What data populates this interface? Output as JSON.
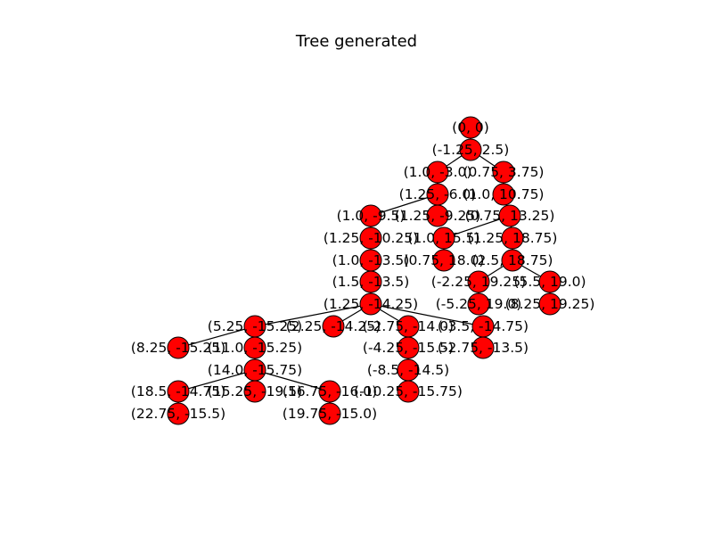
{
  "figure": {
    "title": "Tree generated",
    "node_color": "#ff0000",
    "edge_color": "#000000"
  },
  "nodes": [
    {
      "id": "n0",
      "label": "(0, 0)"
    },
    {
      "id": "n1",
      "label": "(-1.25, 2.5)"
    },
    {
      "id": "n2",
      "label": "(1.0, -3.0)"
    },
    {
      "id": "n3",
      "label": "(0.75, 3.75)"
    },
    {
      "id": "n4",
      "label": "(1.25, -6.0)"
    },
    {
      "id": "n5",
      "label": "(1.0, 10.75)"
    },
    {
      "id": "n6",
      "label": "(1.0, -9.5)"
    },
    {
      "id": "n7",
      "label": "(1.25, -9.25)"
    },
    {
      "id": "n8",
      "label": "(0.75, 13.25)"
    },
    {
      "id": "n9",
      "label": "(1.25, -10.25)"
    },
    {
      "id": "n10",
      "label": "(1.0, 15.5)"
    },
    {
      "id": "n11",
      "label": "(1.25, 18.75)"
    },
    {
      "id": "n12",
      "label": "(1.0, -13.5)"
    },
    {
      "id": "n13",
      "label": "(0.75, 18.0)"
    },
    {
      "id": "n14",
      "label": "(2.5, 18.75)"
    },
    {
      "id": "n15",
      "label": "(1.5, -13.5)"
    },
    {
      "id": "n16",
      "label": "(-2.25, 19.25)"
    },
    {
      "id": "n17",
      "label": "(5.5, 19.0)"
    },
    {
      "id": "n18",
      "label": "(1.25, -14.25)"
    },
    {
      "id": "n19",
      "label": "(-5.25, 19.0)"
    },
    {
      "id": "n20",
      "label": "(8.25, 19.25)"
    },
    {
      "id": "n21",
      "label": "(5.25, -15.25)"
    },
    {
      "id": "n22",
      "label": "(2.25, -14.25)"
    },
    {
      "id": "n23",
      "label": "(-2.75, -14.0)"
    },
    {
      "id": "n24",
      "label": "(-3.5, -14.75)"
    },
    {
      "id": "n25",
      "label": "(8.25, -15.25)"
    },
    {
      "id": "n26",
      "label": "(11.0, -15.25)"
    },
    {
      "id": "n27",
      "label": "(-4.25, -15.5)"
    },
    {
      "id": "n28",
      "label": "(-2.75, -13.5)"
    },
    {
      "id": "n29",
      "label": "(14.0, -15.75)"
    },
    {
      "id": "n30",
      "label": "(-8.5, -14.5)"
    },
    {
      "id": "n31",
      "label": "(18.5, -14.75)"
    },
    {
      "id": "n32",
      "label": "(15.25, -19.5)"
    },
    {
      "id": "n33",
      "label": "(16.75, -16.0)"
    },
    {
      "id": "n34",
      "label": "(-10.25, -15.75)"
    },
    {
      "id": "n35",
      "label": "(22.75, -15.5)"
    },
    {
      "id": "n36",
      "label": "(19.75, -15.0)"
    }
  ],
  "edges": [
    [
      "n0",
      "n1"
    ],
    [
      "n1",
      "n2"
    ],
    [
      "n1",
      "n3"
    ],
    [
      "n2",
      "n4"
    ],
    [
      "n3",
      "n5"
    ],
    [
      "n4",
      "n6"
    ],
    [
      "n4",
      "n7"
    ],
    [
      "n5",
      "n8"
    ],
    [
      "n6",
      "n9"
    ],
    [
      "n8",
      "n10"
    ],
    [
      "n8",
      "n11"
    ],
    [
      "n9",
      "n12"
    ],
    [
      "n10",
      "n13"
    ],
    [
      "n11",
      "n14"
    ],
    [
      "n12",
      "n15"
    ],
    [
      "n14",
      "n16"
    ],
    [
      "n14",
      "n17"
    ],
    [
      "n15",
      "n18"
    ],
    [
      "n16",
      "n19"
    ],
    [
      "n17",
      "n20"
    ],
    [
      "n18",
      "n21"
    ],
    [
      "n18",
      "n22"
    ],
    [
      "n18",
      "n23"
    ],
    [
      "n18",
      "n24"
    ],
    [
      "n21",
      "n25"
    ],
    [
      "n21",
      "n26"
    ],
    [
      "n23",
      "n27"
    ],
    [
      "n24",
      "n28"
    ],
    [
      "n26",
      "n29"
    ],
    [
      "n27",
      "n30"
    ],
    [
      "n29",
      "n31"
    ],
    [
      "n29",
      "n32"
    ],
    [
      "n29",
      "n33"
    ],
    [
      "n30",
      "n34"
    ],
    [
      "n31",
      "n35"
    ],
    [
      "n33",
      "n36"
    ]
  ]
}
